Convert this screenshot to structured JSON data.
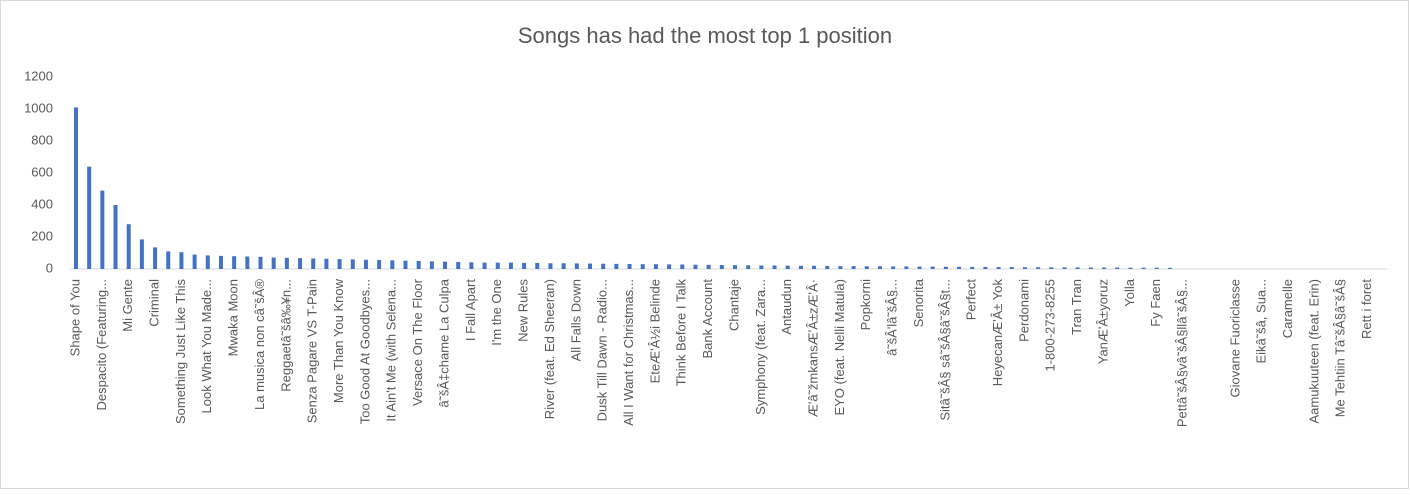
{
  "chart_data": {
    "type": "bar",
    "title": "Songs has had the most top 1 position",
    "categories": [
      "Shape of You",
      null,
      "Despacito (Featuring...",
      null,
      "Mi Gente",
      null,
      "Criminal",
      null,
      "Something Just Like This",
      null,
      "Look What You Made...",
      null,
      "Mwaka Moon",
      null,
      "La musica non câ˜šÂ®",
      null,
      "Reggaetâ˜šâ‰¥n...",
      null,
      "Senza Pagare VS T-Pain",
      null,
      "More Than You Know",
      null,
      "Too Good At Goodbyes...",
      null,
      "It Ain't Me (with Selena...",
      null,
      "Versace On The Floor",
      null,
      "â˜šÂ‡chame La Culpa",
      null,
      "I Fall Apart",
      null,
      "I'm the One",
      null,
      "New Rules",
      null,
      "River (feat. Ed Sheeran)",
      null,
      "All Falls Down",
      null,
      "Dusk Till Dawn - Radio...",
      null,
      "All I Want for Christmas...",
      null,
      "EteÆ'Â½i Belinde",
      null,
      "Think Before I Talk",
      null,
      "Bank Account",
      null,
      "Chantaje",
      null,
      "Symphony (feat. Zara...",
      null,
      "Antaudun",
      null,
      "Æ'â˜žmkansÆ'Â±zÆ'Â·",
      null,
      "EYO (feat. Nelli Matula)",
      null,
      "Popkorni",
      null,
      "â˜šÂ'lâ˜šÂ§...",
      null,
      "Senorita",
      null,
      "Sitâ˜šÂ§ sâ˜šÂ§â˜šÂ§t...",
      null,
      "Perfect",
      null,
      "HeyecanÆ'Â± Yok",
      null,
      "Perdonami",
      null,
      "1-800-273-8255",
      null,
      "Tran Tran",
      null,
      "YanÆ'Â±yoruz",
      null,
      "Yolla",
      null,
      "Fy Faen",
      null,
      "Pettâ˜šÂ§vâ˜šÂ§llâ˜šÂ§...",
      null,
      null,
      null,
      "Giovane Fuoriclasse",
      null,
      "Eikâ˜šâ, Sua...",
      null,
      "Caramelle",
      null,
      "Aamukuuteen (feat. Erin)",
      null,
      "Me Tehtiin Tâ˜šÂ§â˜šÂ§",
      null,
      "Rett i foret",
      null
    ],
    "values": [
      1010,
      640,
      490,
      400,
      280,
      185,
      135,
      110,
      105,
      90,
      85,
      82,
      80,
      78,
      76,
      72,
      70,
      68,
      66,
      64,
      62,
      60,
      58,
      56,
      54,
      52,
      50,
      48,
      46,
      44,
      42,
      40,
      40,
      40,
      38,
      38,
      36,
      36,
      35,
      34,
      33,
      32,
      31,
      30,
      30,
      29,
      28,
      27,
      26,
      25,
      24,
      23,
      22,
      22,
      21,
      20,
      20,
      19,
      18,
      18,
      17,
      17,
      16,
      16,
      15,
      15,
      14,
      14,
      13,
      13,
      12,
      12,
      11,
      11,
      10,
      10,
      10,
      9,
      9,
      9,
      8,
      8,
      8,
      7,
      0,
      0,
      0,
      0,
      0,
      0,
      0,
      0,
      0,
      0,
      0,
      0,
      0,
      0,
      0,
      0
    ],
    "color": "#4472c4",
    "ylim": [
      0,
      1200
    ],
    "yticks": [
      0,
      200,
      400,
      600,
      800,
      1000,
      1200
    ],
    "grid": false
  }
}
